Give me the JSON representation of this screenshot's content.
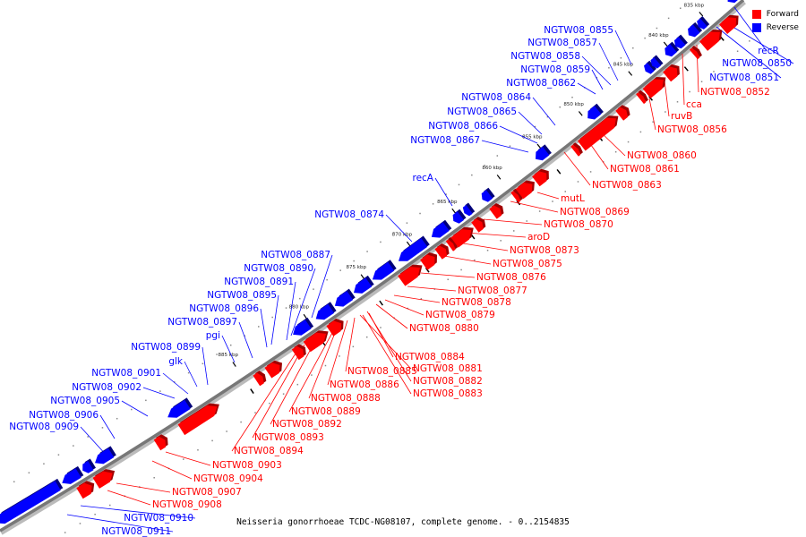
{
  "caption": "Neisseria gonorrhoeae TCDC-NG08107, complete genome. - 0..2154835",
  "legend": [
    {
      "label": "Forward",
      "color": "#ff0000"
    },
    {
      "label": "Reverse",
      "color": "#0000ff"
    }
  ],
  "colors": {
    "forward": "#ff0000",
    "forward_dark": "#a00000",
    "reverse": "#0000ff",
    "reverse_dark": "#00007a",
    "backbone": "#777777"
  },
  "ticks": [
    "835 kbp",
    "840 kbp",
    "845 kbp",
    "850 kbp",
    "855 kbp",
    "860 kbp",
    "865 kbp",
    "870 kbp",
    "875 kbp",
    "880 kbp",
    "885 kbp"
  ],
  "reverse_labels": [
    "recR",
    "NGTW08_0850",
    "NGTW08_0851",
    "NGTW08_0855",
    "NGTW08_0857",
    "NGTW08_0858",
    "NGTW08_0859",
    "NGTW08_0862",
    "NGTW08_0864",
    "NGTW08_0865",
    "NGTW08_0866",
    "NGTW08_0867",
    "recA",
    "NGTW08_0874",
    "NGTW08_0887",
    "NGTW08_0890",
    "NGTW08_0891",
    "NGTW08_0895",
    "NGTW08_0896",
    "NGTW08_0897",
    "pgi",
    "NGTW08_0899",
    "glk",
    "NGTW08_0901",
    "NGTW08_0902",
    "NGTW08_0905",
    "NGTW08_0906",
    "NGTW08_0909",
    "NGTW08_0910",
    "NGTW08_0911"
  ],
  "forward_labels": [
    "NGTW08_0852",
    "cca",
    "ruvB",
    "NGTW08_0856",
    "NGTW08_0860",
    "NGTW08_0861",
    "NGTW08_0863",
    "mutL",
    "NGTW08_0869",
    "NGTW08_0870",
    "aroD",
    "NGTW08_0873",
    "NGTW08_0875",
    "NGTW08_0876",
    "NGTW08_0877",
    "NGTW08_0878",
    "NGTW08_0879",
    "NGTW08_0880",
    "NGTW08_0884",
    "NGTW08_0881",
    "NGTW08_0885",
    "NGTW08_0882",
    "NGTW08_0886",
    "NGTW08_0883",
    "NGTW08_0888",
    "NGTW08_0889",
    "NGTW08_0892",
    "NGTW08_0893",
    "NGTW08_0894",
    "NGTW08_0903",
    "NGTW08_0904",
    "NGTW08_0907",
    "NGTW08_0908"
  ]
}
